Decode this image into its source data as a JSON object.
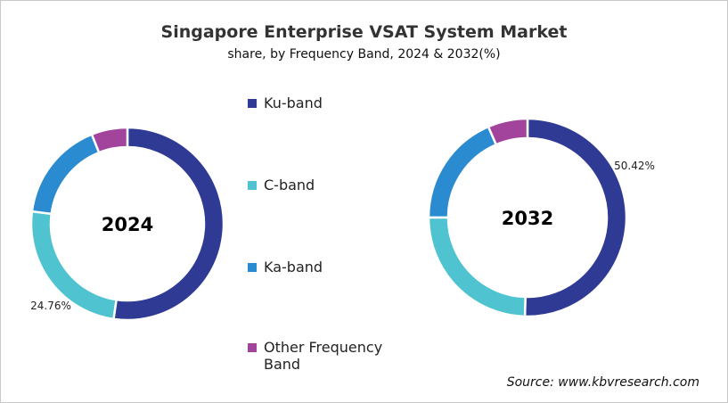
{
  "chart_data": {
    "type": "donut",
    "title": "Singapore Enterprise VSAT System Market",
    "subtitle": "share, by Frequency Band, 2024 & 2032(%)",
    "categories": [
      "Ku-band",
      "C-band",
      "Ka-band",
      "Other Frequency Band"
    ],
    "colors": [
      "#2e3a94",
      "#4fc4d0",
      "#2a8bd0",
      "#a2449c"
    ],
    "series": [
      {
        "name": "2024",
        "values": [
          52.3,
          24.76,
          16.9,
          6.04
        ],
        "labels": [
          "",
          "24.76%",
          "",
          ""
        ]
      },
      {
        "name": "2032",
        "values": [
          50.42,
          24.6,
          18.5,
          6.48
        ],
        "labels": [
          "50.42%",
          "",
          "",
          ""
        ]
      }
    ],
    "legend_position": "center",
    "source": "Source: www.kbvresearch.com"
  }
}
